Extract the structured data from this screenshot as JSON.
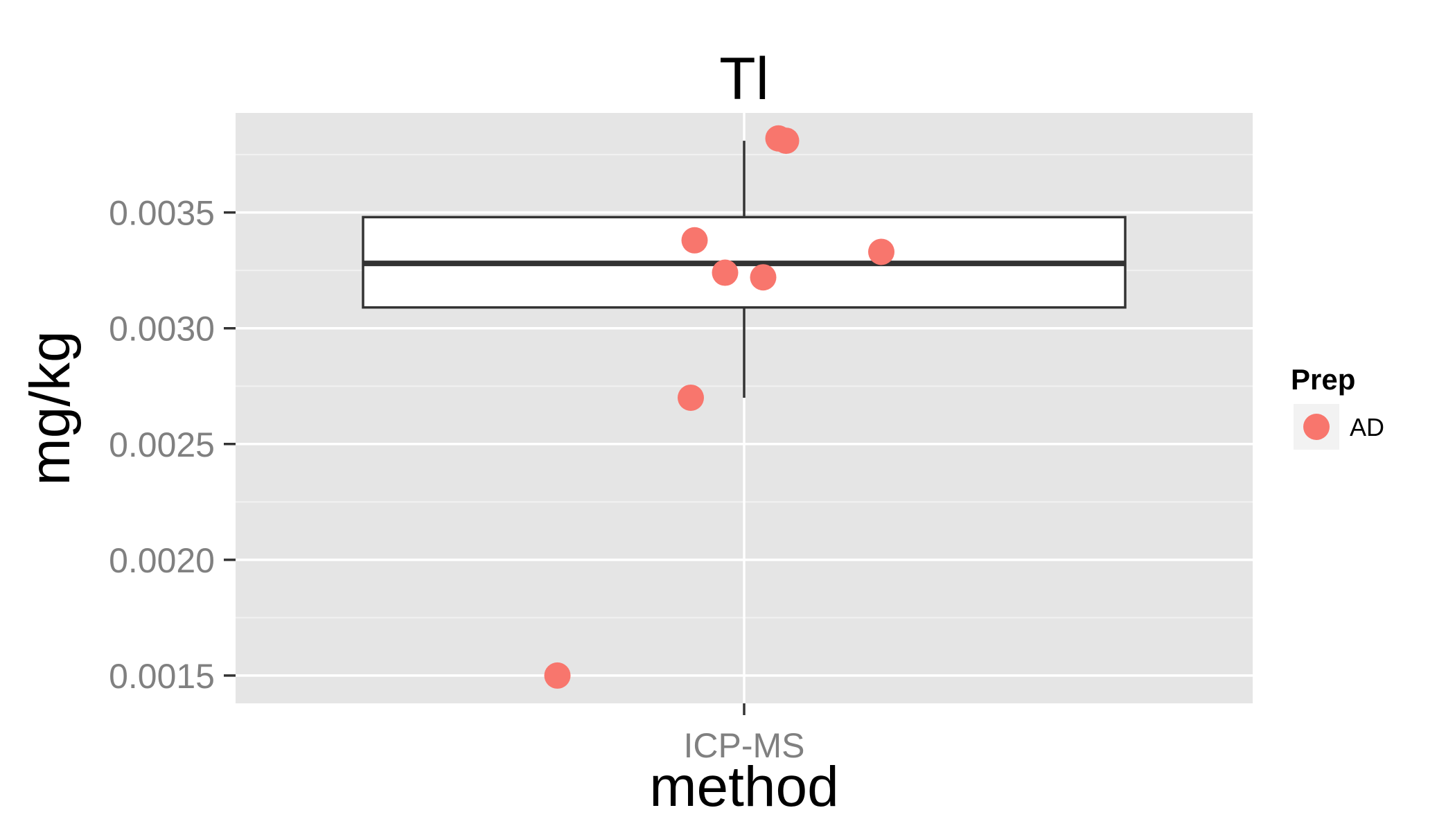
{
  "chart_data": {
    "type": "boxplot",
    "title": "Tl",
    "xlabel": "method",
    "ylabel": "mg/kg",
    "categories": [
      "ICP-MS"
    ],
    "ylim": [
      0.00138,
      0.00393
    ],
    "y_ticks": [
      0.0015,
      0.002,
      0.0025,
      0.003,
      0.0035
    ],
    "y_tick_labels": [
      "0.0015",
      "0.0020",
      "0.0025",
      "0.0030",
      "0.0035"
    ],
    "grid": true,
    "boxes": [
      {
        "category": "ICP-MS",
        "whisker_low": 0.0027,
        "q1": 0.00309,
        "median": 0.00328,
        "q3": 0.00348,
        "whisker_high": 0.00381
      }
    ],
    "series": [
      {
        "name": "AD",
        "color": "#F8766D",
        "points": [
          {
            "category": "ICP-MS",
            "jitter": 0.09,
            "y": 0.00382
          },
          {
            "category": "ICP-MS",
            "jitter": 0.11,
            "y": 0.00381
          },
          {
            "category": "ICP-MS",
            "jitter": -0.13,
            "y": 0.00338
          },
          {
            "category": "ICP-MS",
            "jitter": 0.36,
            "y": 0.00333
          },
          {
            "category": "ICP-MS",
            "jitter": -0.05,
            "y": 0.00324
          },
          {
            "category": "ICP-MS",
            "jitter": 0.05,
            "y": 0.00322
          },
          {
            "category": "ICP-MS",
            "jitter": -0.14,
            "y": 0.0027
          },
          {
            "category": "ICP-MS",
            "jitter": -0.49,
            "y": 0.0015
          }
        ]
      }
    ],
    "legend": {
      "title": "Prep",
      "position": "right",
      "entries": [
        {
          "label": "AD",
          "color": "#F8766D"
        }
      ]
    },
    "colors": {
      "panel_background": "#E5E5E5",
      "grid_major": "#FFFFFF",
      "grid_minor": "#F2F2F2",
      "box_fill": "#FFFFFF",
      "box_line": "#333333",
      "tick_label": "#808080"
    }
  }
}
